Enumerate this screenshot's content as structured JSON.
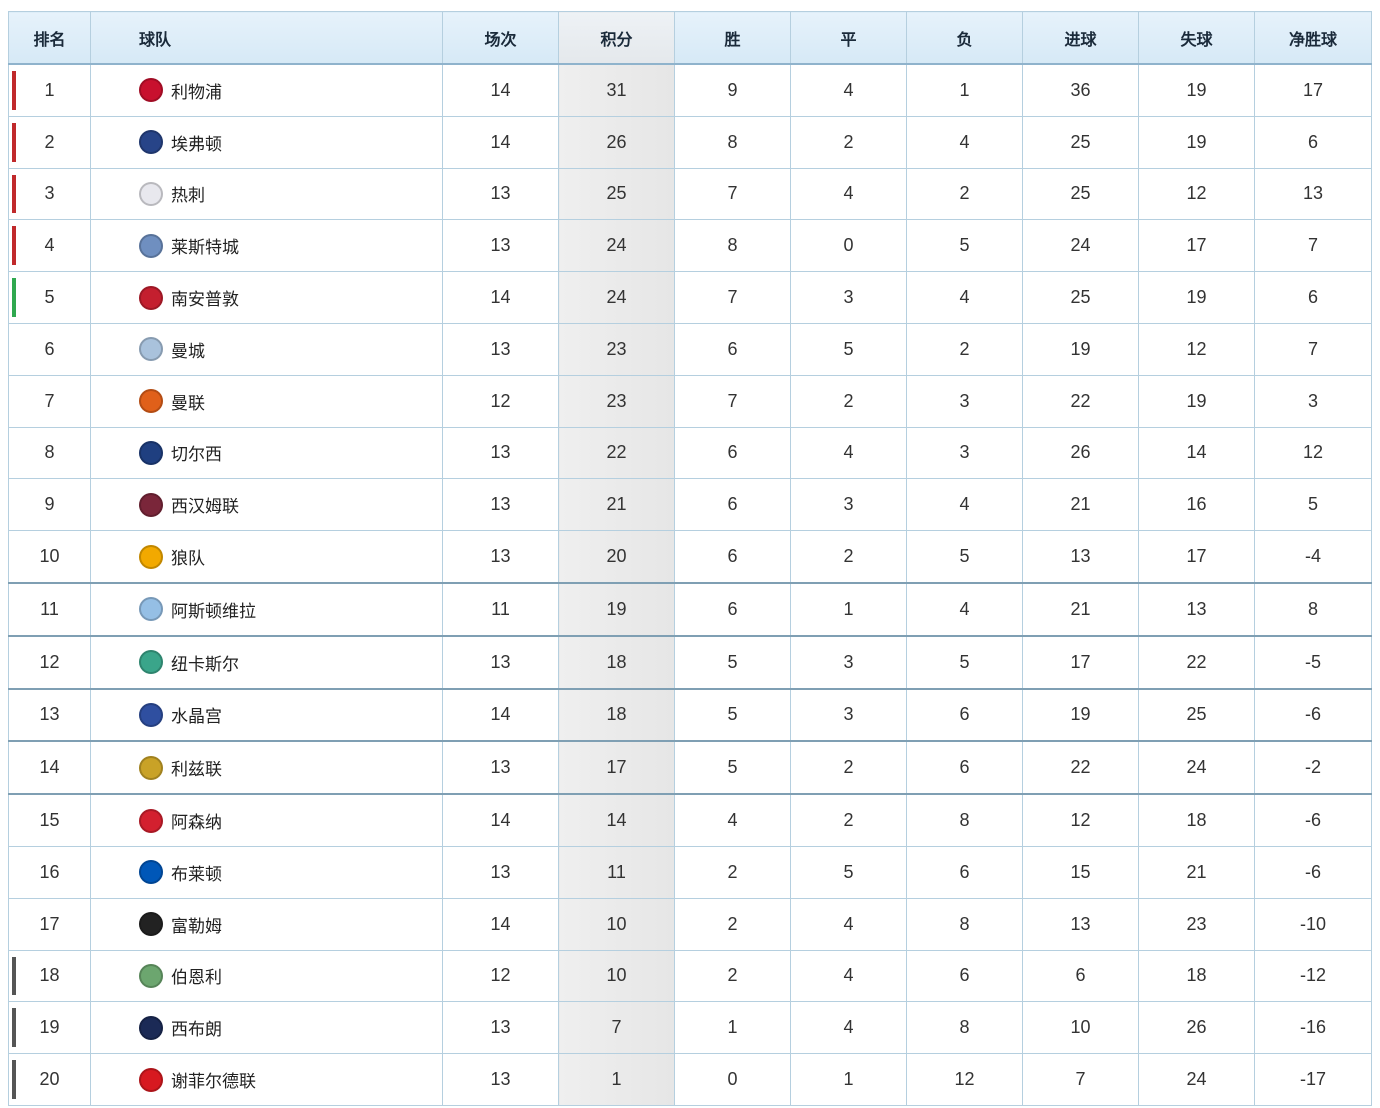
{
  "headers": [
    "排名",
    "球队",
    "场次",
    "积分",
    "胜",
    "平",
    "负",
    "进球",
    "失球",
    "净胜球"
  ],
  "zone_colors": {
    "champions": "#c0292b",
    "europa": "#2fa84f",
    "relegation": "#555555"
  },
  "rows": [
    {
      "rank": "1",
      "team": "利物浦",
      "played": "14",
      "points": "31",
      "won": "9",
      "drawn": "4",
      "lost": "1",
      "gf": "36",
      "ga": "19",
      "gd": "17",
      "zone": "champions",
      "badge_color": "#c8102e"
    },
    {
      "rank": "2",
      "team": "埃弗顿",
      "played": "14",
      "points": "26",
      "won": "8",
      "drawn": "2",
      "lost": "4",
      "gf": "25",
      "ga": "19",
      "gd": "6",
      "zone": "champions",
      "badge_color": "#274488"
    },
    {
      "rank": "3",
      "team": "热刺",
      "played": "13",
      "points": "25",
      "won": "7",
      "drawn": "4",
      "lost": "2",
      "gf": "25",
      "ga": "12",
      "gd": "13",
      "zone": "champions",
      "badge_color": "#e8e8ee"
    },
    {
      "rank": "4",
      "team": "莱斯特城",
      "played": "13",
      "points": "24",
      "won": "8",
      "drawn": "0",
      "lost": "5",
      "gf": "24",
      "ga": "17",
      "gd": "7",
      "zone": "champions",
      "badge_color": "#6f8fc0"
    },
    {
      "rank": "5",
      "team": "南安普敦",
      "played": "14",
      "points": "24",
      "won": "7",
      "drawn": "3",
      "lost": "4",
      "gf": "25",
      "ga": "19",
      "gd": "6",
      "zone": "europa",
      "badge_color": "#c41f2f"
    },
    {
      "rank": "6",
      "team": "曼城",
      "played": "13",
      "points": "23",
      "won": "6",
      "drawn": "5",
      "lost": "2",
      "gf": "19",
      "ga": "12",
      "gd": "7",
      "zone": "",
      "badge_color": "#a9c2dc"
    },
    {
      "rank": "7",
      "team": "曼联",
      "played": "12",
      "points": "23",
      "won": "7",
      "drawn": "2",
      "lost": "3",
      "gf": "22",
      "ga": "19",
      "gd": "3",
      "zone": "",
      "badge_color": "#e0601a"
    },
    {
      "rank": "8",
      "team": "切尔西",
      "played": "13",
      "points": "22",
      "won": "6",
      "drawn": "4",
      "lost": "3",
      "gf": "26",
      "ga": "14",
      "gd": "12",
      "zone": "",
      "badge_color": "#1f3f80"
    },
    {
      "rank": "9",
      "team": "西汉姆联",
      "played": "13",
      "points": "21",
      "won": "6",
      "drawn": "3",
      "lost": "4",
      "gf": "21",
      "ga": "16",
      "gd": "5",
      "zone": "",
      "badge_color": "#7a263a"
    },
    {
      "rank": "10",
      "team": "狼队",
      "played": "13",
      "points": "20",
      "won": "6",
      "drawn": "2",
      "lost": "5",
      "gf": "13",
      "ga": "17",
      "gd": "-4",
      "zone": "",
      "badge_color": "#f2a900"
    },
    {
      "rank": "11",
      "team": "阿斯顿维拉",
      "played": "11",
      "points": "19",
      "won": "6",
      "drawn": "1",
      "lost": "4",
      "gf": "21",
      "ga": "13",
      "gd": "8",
      "zone": "",
      "badge_color": "#95bfe5"
    },
    {
      "rank": "12",
      "team": "纽卡斯尔",
      "played": "13",
      "points": "18",
      "won": "5",
      "drawn": "3",
      "lost": "5",
      "gf": "17",
      "ga": "22",
      "gd": "-5",
      "zone": "",
      "badge_color": "#3aa58a"
    },
    {
      "rank": "13",
      "team": "水晶宫",
      "played": "14",
      "points": "18",
      "won": "5",
      "drawn": "3",
      "lost": "6",
      "gf": "19",
      "ga": "25",
      "gd": "-6",
      "zone": "",
      "badge_color": "#2f4fa0"
    },
    {
      "rank": "14",
      "team": "利兹联",
      "played": "13",
      "points": "17",
      "won": "5",
      "drawn": "2",
      "lost": "6",
      "gf": "22",
      "ga": "24",
      "gd": "-2",
      "zone": "",
      "badge_color": "#c9a227"
    },
    {
      "rank": "15",
      "team": "阿森纳",
      "played": "14",
      "points": "14",
      "won": "4",
      "drawn": "2",
      "lost": "8",
      "gf": "12",
      "ga": "18",
      "gd": "-6",
      "zone": "",
      "badge_color": "#d3202f"
    },
    {
      "rank": "16",
      "team": "布莱顿",
      "played": "13",
      "points": "11",
      "won": "2",
      "drawn": "5",
      "lost": "6",
      "gf": "15",
      "ga": "21",
      "gd": "-6",
      "zone": "",
      "badge_color": "#0057b8"
    },
    {
      "rank": "17",
      "team": "富勒姆",
      "played": "14",
      "points": "10",
      "won": "2",
      "drawn": "4",
      "lost": "8",
      "gf": "13",
      "ga": "23",
      "gd": "-10",
      "zone": "",
      "badge_color": "#222222"
    },
    {
      "rank": "18",
      "team": "伯恩利",
      "played": "12",
      "points": "10",
      "won": "2",
      "drawn": "4",
      "lost": "6",
      "gf": "6",
      "ga": "18",
      "gd": "-12",
      "zone": "relegation",
      "badge_color": "#6ca66f"
    },
    {
      "rank": "19",
      "team": "西布朗",
      "played": "13",
      "points": "7",
      "won": "1",
      "drawn": "4",
      "lost": "8",
      "gf": "10",
      "ga": "26",
      "gd": "-16",
      "zone": "relegation",
      "badge_color": "#1b2a56"
    },
    {
      "rank": "20",
      "team": "谢菲尔德联",
      "played": "13",
      "points": "1",
      "won": "0",
      "drawn": "1",
      "lost": "12",
      "gf": "7",
      "ga": "24",
      "gd": "-17",
      "zone": "relegation",
      "badge_color": "#d71920"
    }
  ]
}
